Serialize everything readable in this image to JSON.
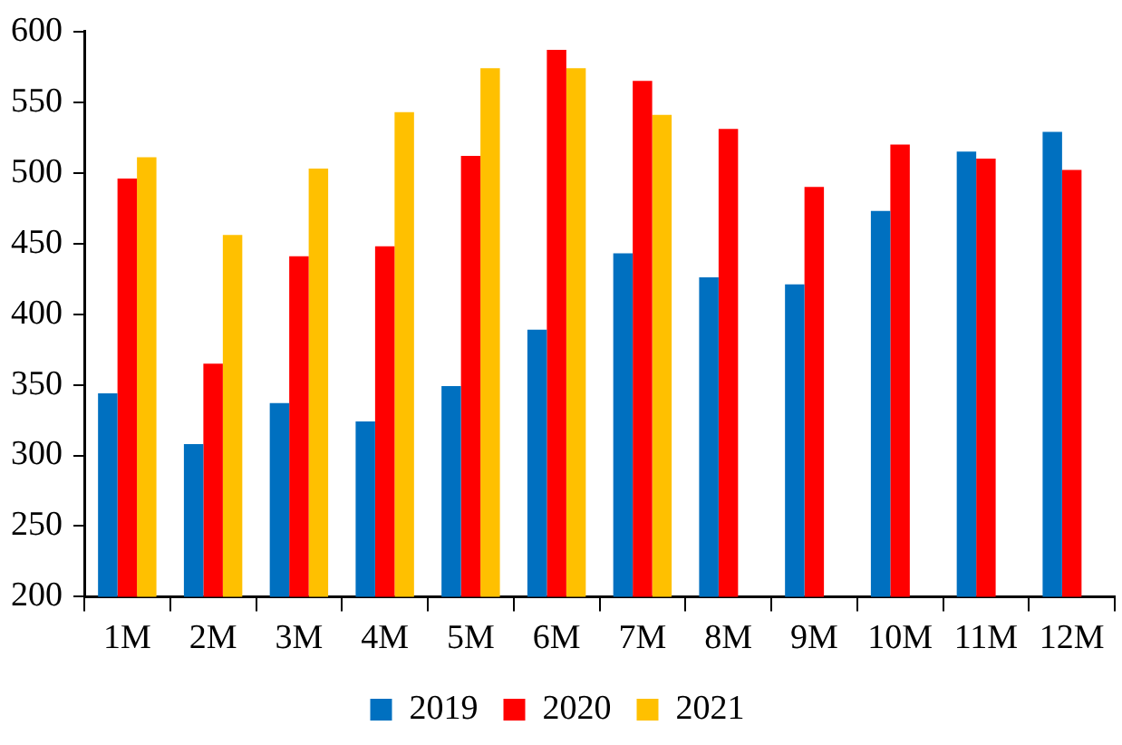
{
  "chart_data": {
    "type": "bar",
    "categories": [
      "1M",
      "2M",
      "3M",
      "4M",
      "5M",
      "6M",
      "7M",
      "8M",
      "9M",
      "10M",
      "11M",
      "12M"
    ],
    "series": [
      {
        "name": "2019",
        "color": "#0070c0",
        "values": [
          344,
          308,
          337,
          324,
          349,
          389,
          443,
          426,
          421,
          473,
          515,
          529
        ]
      },
      {
        "name": "2020",
        "color": "#ff0000",
        "values": [
          496,
          365,
          441,
          448,
          512,
          587,
          565,
          531,
          490,
          520,
          510,
          502
        ]
      },
      {
        "name": "2021",
        "color": "#ffc000",
        "values": [
          511,
          456,
          503,
          543,
          574,
          574,
          541,
          null,
          null,
          null,
          null,
          null
        ]
      }
    ],
    "ylim": [
      200,
      600
    ],
    "yticks": [
      200,
      250,
      300,
      350,
      400,
      450,
      500,
      550,
      600
    ],
    "grid": false,
    "legend": "bottom"
  }
}
